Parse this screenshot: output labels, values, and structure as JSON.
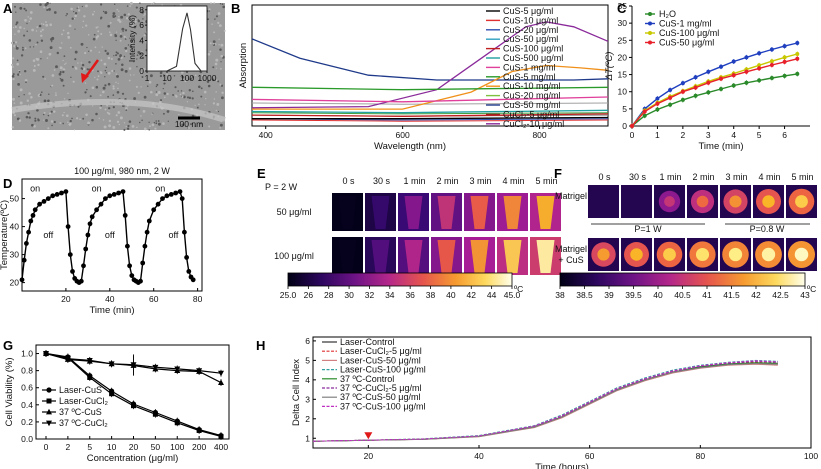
{
  "figure": {
    "panel_labels": [
      "A",
      "B",
      "C",
      "D",
      "E",
      "F",
      "G",
      "H"
    ],
    "colors": {
      "cus_control": "#000000",
      "cus_1mg": "#1f3fbf",
      "cus_100": "#c8c800",
      "cus_50": "#e8202a",
      "h2o": "#2a8a2a",
      "cus_5": "#d4237a"
    }
  },
  "chart_data": [
    {
      "panel": "A",
      "type": "line",
      "inset_ylabel": "Intensity (%)",
      "inset_xticks": [
        "1",
        "10",
        "100",
        "1000"
      ],
      "inset_yticks": [
        "0",
        "2",
        "4",
        "6",
        "8"
      ],
      "x": [
        1,
        10,
        30,
        60,
        100,
        150,
        250,
        500,
        1000
      ],
      "y": [
        0,
        0,
        0.6,
        5.5,
        7.6,
        5.4,
        1.0,
        0,
        0
      ],
      "scale_bar_label": "100 nm"
    },
    {
      "panel": "B",
      "type": "line",
      "xlabel": "Wavelength (nm)",
      "ylabel": "Absorption",
      "xticks": [
        "400",
        "600",
        "800"
      ],
      "xlim": [
        380,
        900
      ],
      "legend": [
        "CuS-5 μg/ml",
        "CuS-10 μg/ml",
        "CuS-20 μg/ml",
        "CuS-50 μg/ml",
        "CuS-100 μg/ml",
        "CuS-500 μg/ml",
        "CuS-1 mg/ml",
        "CuS-5 mg/ml",
        "CuS-10 mg/ml",
        "CuS-20 mg/ml",
        "CuS-50 mg/ml",
        "CuCl₂-5 μg/ml",
        "CuCl₂-10 μg/ml"
      ],
      "series": [
        {
          "name": "CuS-50 mg/ml",
          "color": "#1f3a8a",
          "x": [
            380,
            450,
            550,
            650,
            750,
            850,
            900
          ],
          "values": [
            0.72,
            0.56,
            0.42,
            0.38,
            0.38,
            0.38,
            0.39
          ]
        },
        {
          "name": "CuCl₂-10 μg/ml",
          "color": "#8a2a9a",
          "x": [
            380,
            550,
            650,
            720,
            780,
            810,
            850,
            900
          ],
          "values": [
            0.15,
            0.16,
            0.3,
            0.58,
            0.82,
            0.86,
            0.82,
            0.7
          ]
        },
        {
          "name": "CuS-10 mg/ml",
          "color": "#f0901a",
          "x": [
            380,
            600,
            700,
            760,
            810,
            860,
            900
          ],
          "values": [
            0.14,
            0.14,
            0.28,
            0.45,
            0.5,
            0.48,
            0.46
          ]
        },
        {
          "name": "CuS-5 mg/ml",
          "color": "#2a9a2a",
          "x": [
            380,
            600,
            900
          ],
          "values": [
            0.32,
            0.3,
            0.32
          ]
        },
        {
          "name": "CuS-1 mg/ml",
          "color": "#e0409a",
          "x": [
            380,
            600,
            900
          ],
          "values": [
            0.22,
            0.2,
            0.24
          ]
        },
        {
          "name": "CuS-500 μg/ml",
          "color": "#20a0a0",
          "x": [
            380,
            600,
            900
          ],
          "values": [
            0.12,
            0.11,
            0.13
          ]
        },
        {
          "name": "CuS-100 μg/ml",
          "color": "#c02020",
          "x": [
            380,
            600,
            900
          ],
          "values": [
            0.09,
            0.08,
            0.1
          ]
        },
        {
          "name": "CuS-5 μg/ml",
          "color": "#000000",
          "x": [
            380,
            600,
            900
          ],
          "values": [
            0.06,
            0.06,
            0.07
          ]
        }
      ]
    },
    {
      "panel": "C",
      "type": "line",
      "xlabel": "Time (min)",
      "ylabel": "ΔT(ºC)",
      "xticks": [
        "0",
        "1",
        "2",
        "3",
        "4",
        "5",
        "6"
      ],
      "yticks": [
        "0",
        "5",
        "10",
        "15",
        "20",
        "25",
        "30",
        "35"
      ],
      "xlim": [
        0,
        7
      ],
      "ylim": [
        0,
        35
      ],
      "legend": [
        "H₂O",
        "CuS-1 mg/ml",
        "CuS-100 μg/ml",
        "CuS-50 μg/ml"
      ],
      "series": [
        {
          "name": "H₂O",
          "color": "#2a8a2a",
          "x": [
            0,
            0.5,
            1,
            1.5,
            2,
            2.5,
            3,
            3.5,
            4,
            4.5,
            5,
            5.5,
            6,
            6.5
          ],
          "values": [
            0,
            3,
            4.8,
            6.2,
            7.6,
            8.8,
            9.8,
            10.8,
            11.8,
            12.6,
            13.3,
            14,
            14.6,
            15.2
          ]
        },
        {
          "name": "CuS-1 mg/ml",
          "color": "#1f3fbf",
          "x": [
            0,
            0.5,
            1,
            1.5,
            2,
            2.5,
            3,
            3.5,
            4,
            4.5,
            5,
            5.5,
            6,
            6.5
          ],
          "values": [
            0,
            5,
            8,
            10.5,
            12.5,
            14.2,
            15.8,
            17.3,
            18.8,
            20,
            21.2,
            22.3,
            23.3,
            24.2
          ]
        },
        {
          "name": "CuS-100 μg/ml",
          "color": "#c8c800",
          "x": [
            0,
            0.5,
            1,
            1.5,
            2,
            2.5,
            3,
            3.5,
            4,
            4.5,
            5,
            5.5,
            6,
            6.5
          ],
          "values": [
            0,
            4.5,
            6.8,
            8.6,
            10.2,
            11.6,
            13,
            14.2,
            15.3,
            16.5,
            17.7,
            18.9,
            20,
            21
          ]
        },
        {
          "name": "CuS-50 μg/ml",
          "color": "#e8202a",
          "x": [
            0,
            0.5,
            1,
            1.5,
            2,
            2.5,
            3,
            3.5,
            4,
            4.5,
            5,
            5.5,
            6,
            6.5
          ],
          "values": [
            0,
            4.2,
            6.5,
            8.2,
            10,
            11.2,
            12.6,
            13.8,
            14.8,
            15.8,
            16.8,
            17.8,
            18.7,
            19.6
          ]
        }
      ]
    },
    {
      "panel": "D",
      "type": "line",
      "title": "100 μg/ml, 980 nm, 2 W",
      "xlabel": "Time (min)",
      "ylabel": "Temperature(ºC)",
      "xticks": [
        "20",
        "40",
        "60",
        "80"
      ],
      "yticks": [
        "20",
        "30",
        "40",
        "50"
      ],
      "xlim": [
        0,
        82
      ],
      "ylim": [
        17,
        57
      ],
      "annotations": [
        "on",
        "off",
        "on",
        "off",
        "on",
        "off"
      ],
      "x": [
        0,
        1,
        2,
        3,
        4,
        5,
        6,
        8,
        10,
        12,
        14,
        16,
        18,
        20,
        21,
        22,
        23,
        24,
        25,
        26,
        27,
        28,
        29,
        30,
        31,
        32,
        34,
        36,
        38,
        40,
        42,
        44,
        46,
        47,
        48,
        49,
        50,
        51,
        52,
        53,
        54,
        55,
        56,
        57,
        58,
        60,
        62,
        64,
        66,
        68,
        70,
        72,
        73,
        74,
        75,
        76,
        77,
        78
      ],
      "values": [
        21,
        28,
        34,
        38,
        42,
        44,
        46,
        48,
        49,
        50,
        51,
        51.5,
        52,
        52.5,
        40,
        30,
        24,
        21.5,
        20.5,
        20,
        20.5,
        26,
        32,
        37,
        41,
        43.5,
        46,
        48,
        50,
        51,
        51.5,
        52,
        52.5,
        44,
        33,
        26,
        22.5,
        21,
        20.5,
        20,
        20.5,
        27,
        33,
        38,
        42,
        46,
        48,
        50,
        51,
        51.5,
        52,
        52.5,
        50,
        38,
        29,
        24,
        22,
        21
      ]
    },
    {
      "panel": "E",
      "type": "heatmap",
      "header_text": "P = 2 W",
      "columns": [
        "0 s",
        "30 s",
        "1 min",
        "2 min",
        "3 min",
        "4 min",
        "5 min"
      ],
      "rows": [
        "50 μg/ml",
        "100 μg/ml"
      ],
      "colorbar_ticks": [
        "25.0",
        "26",
        "28",
        "30",
        "32",
        "34",
        "36",
        "38",
        "40",
        "42",
        "44",
        "45.0"
      ],
      "colorbar_unit": "ºC",
      "values": [
        [
          0.02,
          0.18,
          0.35,
          0.5,
          0.63,
          0.72,
          0.8
        ],
        [
          0.02,
          0.25,
          0.45,
          0.62,
          0.75,
          0.86,
          0.95
        ]
      ]
    },
    {
      "panel": "F",
      "type": "heatmap",
      "columns": [
        "0 s",
        "30 s",
        "1 min",
        "2 min",
        "3 min",
        "4 min",
        "5 min"
      ],
      "rows": [
        "Matrigel",
        "Matrigel\n+ CuS"
      ],
      "power_labels": [
        "P=1 W",
        "P=0.8 W"
      ],
      "colorbar_ticks": [
        "38",
        "38.5",
        "39",
        "39.5",
        "40",
        "40.5",
        "41",
        "41.5",
        "42",
        "42.5",
        "43"
      ],
      "colorbar_unit": "ºC",
      "values": [
        [
          0.05,
          0.1,
          0.45,
          0.6,
          0.68,
          0.75,
          0.8
        ],
        [
          0.7,
          0.75,
          0.8,
          0.85,
          0.88,
          0.9,
          0.92
        ]
      ]
    },
    {
      "panel": "G",
      "type": "line",
      "xlabel": "Concentration (μg/ml)",
      "ylabel": "Cell Viability (%)",
      "categories": [
        "0",
        "2",
        "5",
        "10",
        "20",
        "50",
        "100",
        "200",
        "400"
      ],
      "yticks": [
        "0.0",
        "0.2",
        "0.4",
        "0.6",
        "0.8",
        "1.0"
      ],
      "ylim": [
        0,
        1.1
      ],
      "legend": [
        "Laser-CuS",
        "Laser-CuCl₂",
        "37 ºC-CuS",
        "37 ºC-CuCl₂"
      ],
      "series": [
        {
          "name": "Laser-CuS",
          "marker": "circle",
          "values": [
            1.0,
            0.96,
            0.74,
            0.56,
            0.41,
            0.31,
            0.21,
            0.11,
            0.04
          ]
        },
        {
          "name": "Laser-CuCl₂",
          "marker": "square",
          "values": [
            1.0,
            0.95,
            0.72,
            0.53,
            0.39,
            0.29,
            0.19,
            0.1,
            0.03
          ]
        },
        {
          "name": "37 ºC-CuS",
          "marker": "triangle-up",
          "values": [
            1.0,
            0.93,
            0.91,
            0.88,
            0.86,
            0.82,
            0.8,
            0.79,
            0.66
          ]
        },
        {
          "name": "37 ºC-CuCl₂",
          "marker": "triangle-down",
          "values": [
            1.0,
            0.94,
            0.92,
            0.88,
            0.87,
            0.84,
            0.82,
            0.8,
            0.77
          ]
        }
      ]
    },
    {
      "panel": "H",
      "type": "line",
      "xlabel": "Time (hours)",
      "ylabel": "Delta Cell Index",
      "xticks": [
        "20",
        "40",
        "60",
        "80",
        "100"
      ],
      "yticks": [
        "1",
        "2",
        "3",
        "4",
        "5",
        "6"
      ],
      "xlim": [
        10,
        100
      ],
      "ylim": [
        0.5,
        6.2
      ],
      "arrow_at_x": 20,
      "legend": [
        "Laser-Control",
        "Laser-CuCl₂-5 μg/ml",
        "Laser-CuS-50 μg/ml",
        "Laser-CuS-100 μg/ml",
        "37 ºC-Control",
        "37 ºC-CuCl₂-5 μg/ml",
        "37 ºC-CuS-50 μg/ml",
        "37 ºC-CuS-100 μg/ml"
      ],
      "series": [
        {
          "name": "Laser-Control",
          "color": "#333333",
          "x": [
            10,
            20,
            30,
            40,
            50,
            55,
            60,
            65,
            70,
            75,
            80,
            85,
            90,
            94
          ],
          "values": [
            0.85,
            0.9,
            0.95,
            1.1,
            1.6,
            2.1,
            2.8,
            3.5,
            4.0,
            4.4,
            4.65,
            4.8,
            4.85,
            4.8
          ]
        },
        {
          "name": "Laser-CuCl₂-5 μg/ml",
          "color": "#e03030",
          "x": [
            10,
            20,
            30,
            40,
            50,
            55,
            60,
            65,
            70,
            75,
            80,
            85,
            90,
            94
          ],
          "values": [
            0.85,
            0.9,
            0.96,
            1.12,
            1.62,
            2.15,
            2.85,
            3.55,
            4.05,
            4.45,
            4.7,
            4.85,
            4.9,
            4.85
          ]
        },
        {
          "name": "Laser-CuS-50 μg/ml",
          "color": "#d08080",
          "x": [
            10,
            20,
            30,
            40,
            50,
            55,
            60,
            65,
            70,
            75,
            80,
            85,
            90,
            94
          ],
          "values": [
            0.85,
            0.9,
            0.94,
            1.08,
            1.55,
            2.05,
            2.75,
            3.45,
            3.95,
            4.35,
            4.6,
            4.75,
            4.8,
            4.75
          ]
        },
        {
          "name": "Laser-CuS-100 μg/ml",
          "color": "#30a0a0",
          "x": [
            10,
            20,
            30,
            40,
            50,
            55,
            60,
            65,
            70,
            75,
            80,
            85,
            90,
            94
          ],
          "values": [
            0.85,
            0.9,
            0.97,
            1.14,
            1.65,
            2.2,
            2.9,
            3.6,
            4.1,
            4.5,
            4.75,
            4.9,
            5.0,
            4.95
          ]
        },
        {
          "name": "37 ºC-Control",
          "color": "#2a8a2a",
          "x": [
            10,
            20,
            30,
            40,
            50,
            55,
            60,
            65,
            70,
            75,
            80,
            85,
            90,
            94
          ],
          "values": [
            0.85,
            0.9,
            0.95,
            1.1,
            1.58,
            2.1,
            2.8,
            3.5,
            4.0,
            4.4,
            4.68,
            4.82,
            4.88,
            4.85
          ]
        },
        {
          "name": "37 ºC-CuCl₂-5 μg/ml",
          "color": "#8a2a9a",
          "x": [
            10,
            20,
            30,
            40,
            50,
            55,
            60,
            65,
            70,
            75,
            80,
            85,
            90,
            94
          ],
          "values": [
            0.85,
            0.9,
            0.95,
            1.1,
            1.6,
            2.12,
            2.82,
            3.52,
            4.02,
            4.42,
            4.7,
            4.85,
            4.95,
            4.9
          ]
        },
        {
          "name": "37 ºC-CuS-50 μg/ml",
          "color": "#808080",
          "x": [
            10,
            20,
            30,
            40,
            50,
            55,
            60,
            65,
            70,
            75,
            80,
            85,
            90,
            94
          ],
          "values": [
            0.85,
            0.9,
            0.94,
            1.09,
            1.57,
            2.08,
            2.78,
            3.48,
            3.98,
            4.38,
            4.62,
            4.78,
            4.84,
            4.8
          ]
        },
        {
          "name": "37 ºC-CuS-100 μg/ml",
          "color": "#c030c0",
          "x": [
            10,
            20,
            30,
            40,
            50,
            55,
            60,
            65,
            70,
            75,
            80,
            85,
            90,
            94
          ],
          "values": [
            0.85,
            0.9,
            0.96,
            1.12,
            1.63,
            2.16,
            2.86,
            3.56,
            4.06,
            4.46,
            4.72,
            4.88,
            4.98,
            4.92
          ]
        }
      ]
    }
  ]
}
